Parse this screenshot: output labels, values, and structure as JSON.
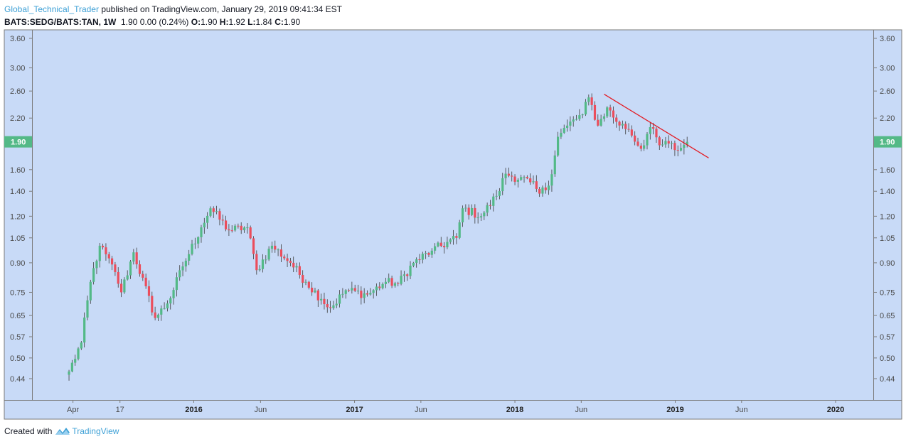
{
  "header": {
    "author": "Global_Technical_Trader",
    "published_text": "published on TradingView.com, January 29, 2019 09:41:34 EST",
    "symbol": "BATS:SEDG/BATS:TAN, 1W",
    "quote": "1.90 0.00 (0.24%)",
    "ohlc": [
      {
        "label": "O:",
        "value": "1.90"
      },
      {
        "label": "H:",
        "value": "1.92"
      },
      {
        "label": "L:",
        "value": "1.84"
      },
      {
        "label": "C:",
        "value": "1.90"
      }
    ]
  },
  "footer": {
    "created_with": "Created with",
    "brand": "TradingView"
  },
  "colors": {
    "plot_background": "#c8daf7",
    "up_candle": "#53b987",
    "down_candle": "#eb4d5c",
    "trendline": "#e31b23",
    "price_badge": "#53b987",
    "brand_blue": "#3da0d6"
  },
  "chart_data": {
    "type": "candlestick",
    "interval": "1W",
    "scale": "log",
    "grid": false,
    "ylim": [
      0.4,
      3.9
    ],
    "y_ticks": [
      0.44,
      0.5,
      0.57,
      0.65,
      0.75,
      0.9,
      1.05,
      1.2,
      1.4,
      1.6,
      1.9,
      2.2,
      2.6,
      3.0,
      3.6
    ],
    "y_tick_labels": [
      "0.44",
      "0.50",
      "0.57",
      "0.65",
      "0.75",
      "0.90",
      "1.05",
      "1.20",
      "1.40",
      "1.60",
      "1.90",
      "2.20",
      "2.60",
      "3.00",
      "3.60"
    ],
    "x_ticks": [
      {
        "label": "Apr",
        "date": "2015-04-01",
        "bold": false
      },
      {
        "label": "17",
        "date": "2015-07-17",
        "bold": false
      },
      {
        "label": "2016",
        "date": "2016-01-01",
        "bold": true
      },
      {
        "label": "Jun",
        "date": "2016-06-01",
        "bold": false
      },
      {
        "label": "2017",
        "date": "2017-01-01",
        "bold": true
      },
      {
        "label": "Jun",
        "date": "2017-06-01",
        "bold": false
      },
      {
        "label": "2018",
        "date": "2018-01-01",
        "bold": true
      },
      {
        "label": "Jun",
        "date": "2018-06-01",
        "bold": false
      },
      {
        "label": "2019",
        "date": "2019-01-01",
        "bold": true
      },
      {
        "label": "Jun",
        "date": "2019-06-01",
        "bold": false
      },
      {
        "label": "2020",
        "date": "2020-01-01",
        "bold": true
      }
    ],
    "last_price": "1.90",
    "trendline": {
      "start": {
        "date": "2018-07-23",
        "value": 2.55
      },
      "end": {
        "date": "2019-03-18",
        "value": 1.72
      }
    },
    "key_prices": [
      {
        "date": "2015-03-23",
        "value": 0.46
      },
      {
        "date": "2015-04-20",
        "value": 0.55
      },
      {
        "date": "2015-05-11",
        "value": 0.8
      },
      {
        "date": "2015-06-01",
        "value": 1.0
      },
      {
        "date": "2015-07-06",
        "value": 0.85
      },
      {
        "date": "2015-07-20",
        "value": 0.75
      },
      {
        "date": "2015-08-17",
        "value": 0.96
      },
      {
        "date": "2015-10-05",
        "value": 0.64
      },
      {
        "date": "2015-11-02",
        "value": 0.7
      },
      {
        "date": "2015-12-07",
        "value": 0.88
      },
      {
        "date": "2016-01-18",
        "value": 1.12
      },
      {
        "date": "2016-02-08",
        "value": 1.26
      },
      {
        "date": "2016-03-21",
        "value": 1.1
      },
      {
        "date": "2016-05-02",
        "value": 1.12
      },
      {
        "date": "2016-05-23",
        "value": 0.86
      },
      {
        "date": "2016-06-27",
        "value": 1.0
      },
      {
        "date": "2016-08-08",
        "value": 0.9
      },
      {
        "date": "2016-09-12",
        "value": 0.8
      },
      {
        "date": "2016-10-17",
        "value": 0.72
      },
      {
        "date": "2016-11-07",
        "value": 0.68
      },
      {
        "date": "2016-12-12",
        "value": 0.76
      },
      {
        "date": "2017-01-30",
        "value": 0.74
      },
      {
        "date": "2017-03-13",
        "value": 0.8
      },
      {
        "date": "2017-04-10",
        "value": 0.79
      },
      {
        "date": "2017-05-15",
        "value": 0.9
      },
      {
        "date": "2017-06-26",
        "value": 0.97
      },
      {
        "date": "2017-08-21",
        "value": 1.05
      },
      {
        "date": "2017-09-04",
        "value": 1.26
      },
      {
        "date": "2017-10-16",
        "value": 1.2
      },
      {
        "date": "2017-11-20",
        "value": 1.36
      },
      {
        "date": "2017-12-11",
        "value": 1.56
      },
      {
        "date": "2018-02-05",
        "value": 1.48
      },
      {
        "date": "2018-02-26",
        "value": 1.38
      },
      {
        "date": "2018-03-19",
        "value": 1.45
      },
      {
        "date": "2018-04-09",
        "value": 1.96
      },
      {
        "date": "2018-04-30",
        "value": 2.1
      },
      {
        "date": "2018-06-04",
        "value": 2.25
      },
      {
        "date": "2018-06-18",
        "value": 2.5
      },
      {
        "date": "2018-07-09",
        "value": 2.1
      },
      {
        "date": "2018-07-30",
        "value": 2.35
      },
      {
        "date": "2018-08-20",
        "value": 2.15
      },
      {
        "date": "2018-09-17",
        "value": 2.05
      },
      {
        "date": "2018-10-15",
        "value": 1.82
      },
      {
        "date": "2018-11-05",
        "value": 2.08
      },
      {
        "date": "2018-11-26",
        "value": 1.86
      },
      {
        "date": "2018-12-17",
        "value": 1.88
      },
      {
        "date": "2019-01-07",
        "value": 1.8
      },
      {
        "date": "2019-01-28",
        "value": 1.9
      }
    ]
  }
}
